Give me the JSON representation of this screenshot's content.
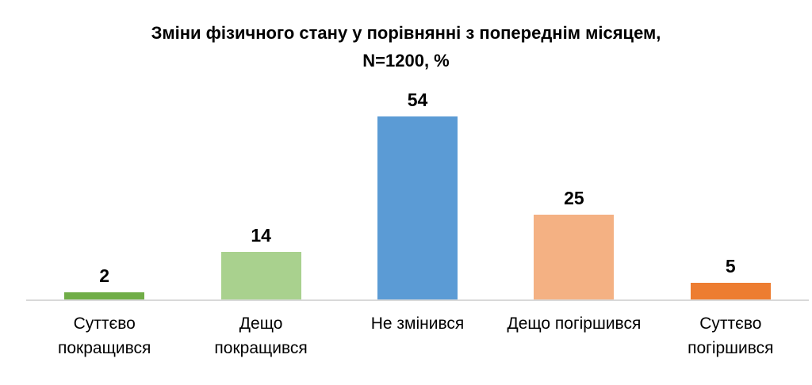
{
  "chart_data": {
    "type": "bar",
    "title": "Зміни фізичного стану у порівнянні з попереднім місяцем,\nN=1200, %",
    "categories": [
      "Суттєво покращився",
      "Дещо покращився",
      "Не змінився",
      "Дещо погіршився",
      "Суттєво погіршився"
    ],
    "categories_display": [
      "Суттєво\nпокращився",
      "Дещо\nпокращився",
      "Не змінився",
      "Дещо погіршився",
      "Суттєво\nпогіршився"
    ],
    "values": [
      2,
      14,
      54,
      25,
      5
    ],
    "colors": [
      "#70AD47",
      "#A9D18E",
      "#5B9BD5",
      "#F4B183",
      "#ED7D31"
    ],
    "xlabel": "",
    "ylabel": "",
    "ylim": [
      0,
      60
    ],
    "grid": false,
    "legend": false,
    "value_labels_shown": true,
    "axis_line_color": "#D9D9D9",
    "background_color": "#FFFFFF",
    "text_color": "#000000"
  }
}
